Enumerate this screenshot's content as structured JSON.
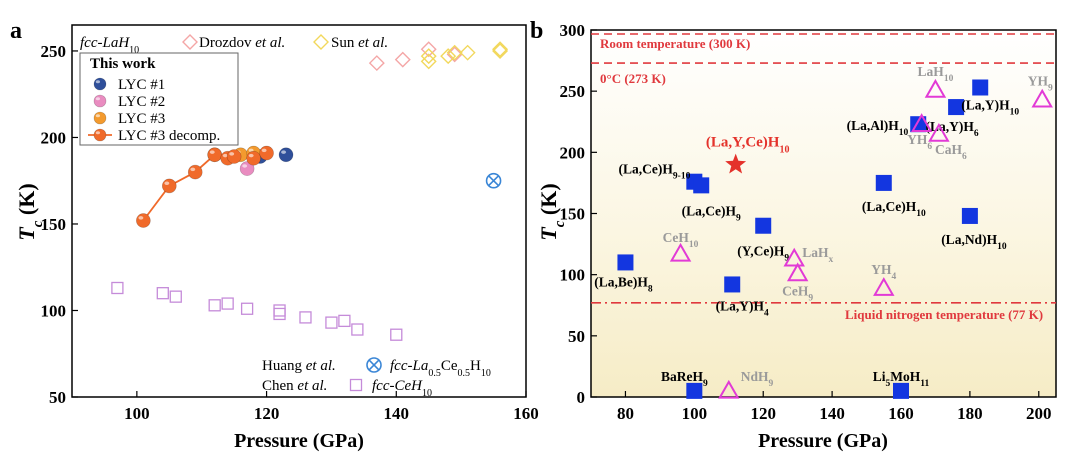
{
  "figure": {
    "panel_a_label": "a",
    "panel_b_label": "b"
  },
  "chart_data": [
    {
      "panel": "a",
      "type": "scatter",
      "xlabel": "Pressure (GPa)",
      "ylabel_main": "T",
      "ylabel_sub": "c",
      "ylabel_unit": " (K)",
      "xlim": [
        90,
        160
      ],
      "ylim": [
        50,
        265
      ],
      "xticks": [
        100,
        120,
        140,
        160
      ],
      "yticks": [
        50,
        100,
        150,
        200,
        250
      ],
      "legend_top": {
        "prefix": "fcc-LaH",
        "prefix_sub": "10",
        "items": [
          {
            "name": "Drozdov ",
            "name_it": "et al.",
            "color": "#f4a6a6"
          },
          {
            "name": "Sun ",
            "name_it": "et al.",
            "color": "#f2d85c"
          }
        ]
      },
      "legend_box": {
        "title": "This work",
        "items": [
          {
            "name": "LYC #1",
            "color": "#2f4f9a"
          },
          {
            "name": "LYC #2",
            "color": "#e98cc0"
          },
          {
            "name": "LYC #3",
            "color": "#f39a2e"
          },
          {
            "name": "LYC #3 decomp.",
            "color": "#f06a2a"
          }
        ]
      },
      "legend_bottom": [
        {
          "author": "Huang ",
          "author_it": "et al.",
          "label": "fcc-La",
          "label_sub1": "0.5",
          "label_mid": "Ce",
          "label_sub2": "0.5",
          "label_end": "H",
          "label_sub3": "10"
        },
        {
          "author": "Chen ",
          "author_it": "et al.",
          "label": "fcc-CeH",
          "label_sub1": "10"
        }
      ],
      "series": [
        {
          "name": "LYC #1",
          "marker": "sphere",
          "color": "#2f4f9a",
          "points": [
            [
              119,
              189
            ],
            [
              123,
              190
            ]
          ]
        },
        {
          "name": "LYC #2",
          "marker": "sphere",
          "color": "#e98cc0",
          "points": [
            [
              117,
              182
            ]
          ]
        },
        {
          "name": "LYC #3",
          "marker": "sphere",
          "color": "#f39a2e",
          "points": [
            [
              112,
              190
            ],
            [
              116,
              190
            ],
            [
              118,
              191
            ]
          ]
        },
        {
          "name": "LYC #3 decomp.",
          "marker": "sphere-line",
          "color": "#f06a2a",
          "points": [
            [
              101,
              152
            ],
            [
              105,
              172
            ],
            [
              109,
              180
            ],
            [
              112,
              190
            ],
            [
              114,
              188
            ],
            [
              115,
              189
            ],
            [
              118,
              188
            ],
            [
              120,
              191
            ]
          ]
        },
        {
          "name": "Drozdov et al.",
          "marker": "diamond",
          "color": "#f4a6a6",
          "points": [
            [
              137,
              243
            ],
            [
              141,
              245
            ],
            [
              145,
              251
            ],
            [
              149,
              248
            ]
          ]
        },
        {
          "name": "Sun et al.",
          "marker": "diamond",
          "color": "#f2d85c",
          "points": [
            [
              145,
              244
            ],
            [
              145,
              247
            ],
            [
              148,
              247
            ],
            [
              149,
              249
            ],
            [
              151,
              249
            ],
            [
              156,
              250
            ],
            [
              156,
              251
            ]
          ]
        },
        {
          "name": "Huang et al.",
          "marker": "circle-x",
          "color": "#3a86d6",
          "points": [
            [
              155,
              175
            ]
          ]
        },
        {
          "name": "Chen et al.",
          "marker": "square",
          "color": "#c58bd9",
          "points": [
            [
              97,
              113
            ],
            [
              104,
              110
            ],
            [
              106,
              108
            ],
            [
              112,
              103
            ],
            [
              114,
              104
            ],
            [
              117,
              101
            ],
            [
              122,
              100
            ],
            [
              122,
              98
            ],
            [
              126,
              96
            ],
            [
              130,
              93
            ],
            [
              132,
              94
            ],
            [
              134,
              89
            ],
            [
              140,
              86
            ]
          ]
        }
      ]
    },
    {
      "panel": "b",
      "type": "scatter",
      "xlabel": "Pressure (GPa)",
      "ylabel_main": "T",
      "ylabel_sub": "c",
      "ylabel_unit": " (K)",
      "xlim": [
        70,
        205
      ],
      "ylim": [
        0,
        300
      ],
      "xticks": [
        80,
        100,
        120,
        140,
        160,
        180,
        200
      ],
      "yticks": [
        0,
        50,
        100,
        150,
        200,
        250,
        300
      ],
      "reference_lines": [
        {
          "y": 300,
          "label": "Room temperature (300 K)",
          "color": "#e0393e",
          "style": "dashed"
        },
        {
          "y": 273,
          "label": "0°C (273 K)",
          "color": "#e0393e",
          "style": "dashed"
        },
        {
          "y": 77,
          "label": "Liquid nitrogen temperature (77 K)",
          "color": "#e0393e",
          "style": "dashdot"
        }
      ],
      "this_work": {
        "x": 112,
        "y": 190,
        "label": "(La,Y,Ce)H",
        "sub": "10",
        "color": "#e4322b"
      },
      "blue_squares": [
        {
          "x": 80,
          "y": 110,
          "base": "(La,Be)H",
          "sub": "8"
        },
        {
          "x": 100,
          "y": 176,
          "base": "(La,Ce)H",
          "sub": "9-10"
        },
        {
          "x": 102,
          "y": 173,
          "base": "(La,Ce)H",
          "sub": "9"
        },
        {
          "x": 120,
          "y": 140,
          "base": "(Y,Ce)H",
          "sub": "9"
        },
        {
          "x": 111,
          "y": 92,
          "base": "(La,Y)H",
          "sub": "4"
        },
        {
          "x": 155,
          "y": 175,
          "base": "(La,Ce)H",
          "sub": "10"
        },
        {
          "x": 165,
          "y": 223,
          "base": "(La,Al)H",
          "sub": "10"
        },
        {
          "x": 176,
          "y": 237,
          "base": "(La,Y)H",
          "sub": "6"
        },
        {
          "x": 183,
          "y": 253,
          "base": "(La,Y)H",
          "sub": "10"
        },
        {
          "x": 180,
          "y": 148,
          "base": "(La,Nd)H",
          "sub": "10"
        },
        {
          "x": 100,
          "y": 5,
          "base": "BaReH",
          "sub": "9"
        },
        {
          "x": 160,
          "y": 5,
          "base": "Li",
          "sub": "5",
          "base2": "MoH",
          "sub2": "11"
        }
      ],
      "magenta_triangles": [
        {
          "x": 96,
          "y": 117,
          "base": "CeH",
          "sub": "10"
        },
        {
          "x": 110,
          "y": 5,
          "base": "NdH",
          "sub": "9"
        },
        {
          "x": 129,
          "y": 113,
          "base": "LaH",
          "sub": "x"
        },
        {
          "x": 130,
          "y": 101,
          "base": "CeH",
          "sub": "9"
        },
        {
          "x": 155,
          "y": 89,
          "base": "YH",
          "sub": "4"
        },
        {
          "x": 166,
          "y": 223,
          "base": "YH",
          "sub": "6"
        },
        {
          "x": 170,
          "y": 251,
          "base": "LaH",
          "sub": "10"
        },
        {
          "x": 171,
          "y": 215,
          "base": "CaH",
          "sub": "6"
        },
        {
          "x": 201,
          "y": 243,
          "base": "YH",
          "sub": "9"
        }
      ]
    }
  ]
}
